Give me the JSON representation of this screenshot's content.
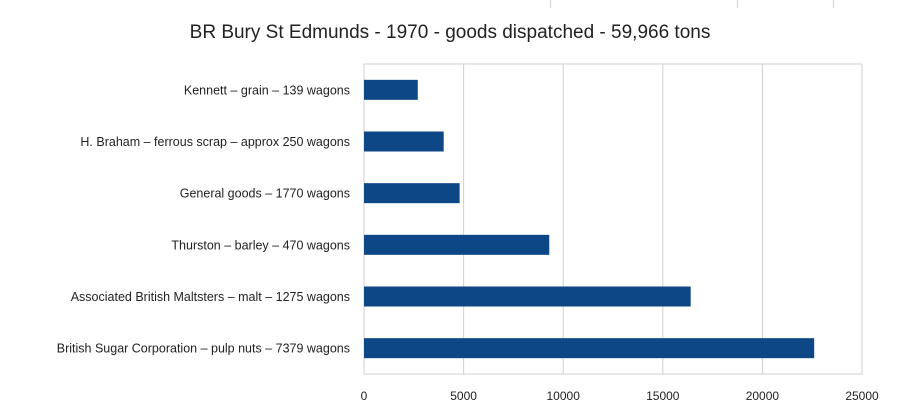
{
  "chart_data": {
    "type": "bar",
    "orientation": "horizontal",
    "title": "BR Bury St Edmunds - 1970 - goods dispatched - 59,966 tons",
    "xlabel": "",
    "ylabel": "",
    "categories": [
      "Kennett – grain – 139 wagons",
      "H. Braham – ferrous scrap – approx 250 wagons",
      "General goods – 1770 wagons",
      "Thurston – barley – 470 wagons",
      "Associated British Maltsters – malt – 1275 wagons",
      "British Sugar Corporation – pulp nuts – 7379 wagons"
    ],
    "values": [
      2700,
      4000,
      4800,
      9300,
      16400,
      22600
    ],
    "xlim": [
      0,
      25000
    ],
    "xticks": [
      0,
      5000,
      10000,
      15000,
      20000,
      25000
    ],
    "grid": true,
    "legend": "none",
    "bar_color": "#0e4786",
    "grid_color": "#d0d0d0"
  }
}
